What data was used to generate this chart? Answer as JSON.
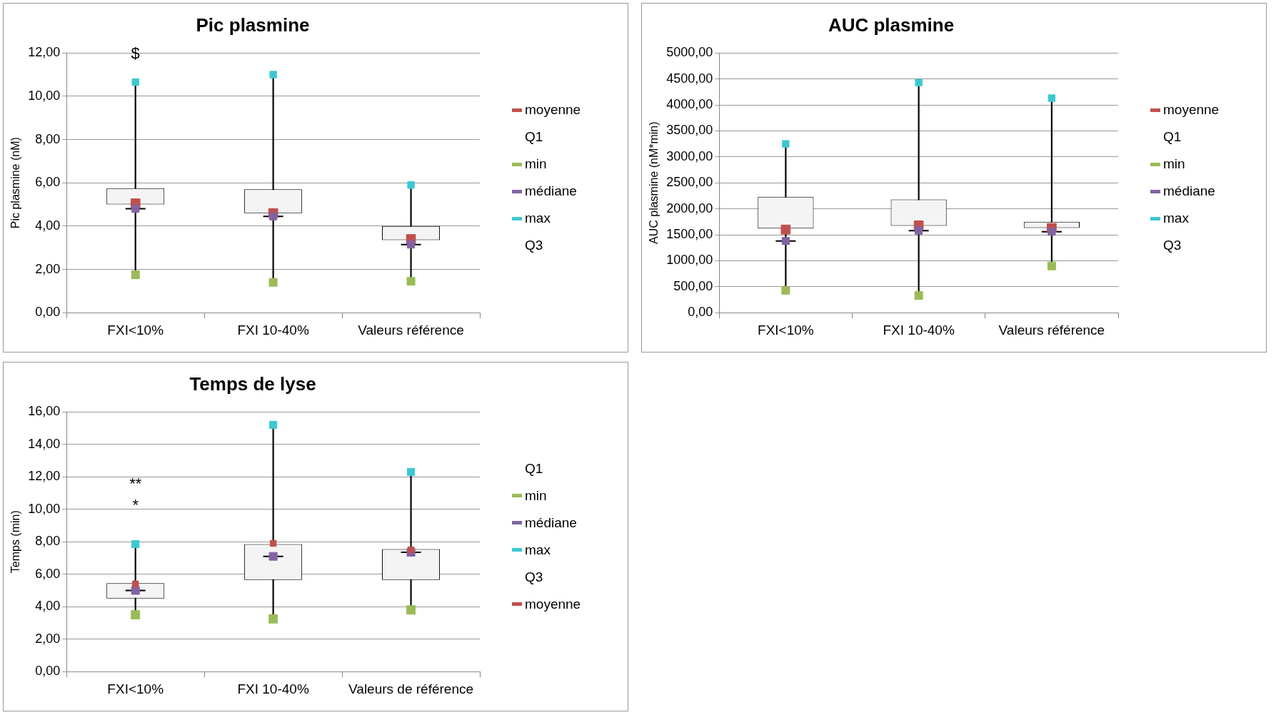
{
  "chart_data": [
    {
      "type": "box",
      "title": "Pic plasmine",
      "ylabel": "Pic plasmine (nM)",
      "categories": [
        "FXI<10%",
        "FXI 10-40%",
        "Valeurs référence"
      ],
      "boxes": [
        {
          "low": 1.75,
          "q1": 5.0,
          "median": 4.8,
          "q3": 5.75,
          "high": 10.65
        },
        {
          "low": 1.4,
          "q1": 4.6,
          "median": 4.45,
          "q3": 5.7,
          "high": 11.0
        },
        {
          "low": 1.45,
          "q1": 3.35,
          "median": 3.15,
          "q3": 4.0,
          "high": 5.9
        }
      ],
      "series": [
        {
          "name": "moyenne",
          "type": "scatter",
          "color": "#c0504d",
          "x": [
            "FXI<10%",
            "FXI 10-40%",
            "Valeurs référence"
          ],
          "values": [
            5.05,
            4.6,
            3.4
          ]
        },
        {
          "name": "Q1",
          "type": "scatter",
          "marker": "none",
          "values": [
            null,
            null,
            null
          ]
        },
        {
          "name": "min",
          "type": "scatter",
          "color": "#9bbb59",
          "x": [
            "FXI<10%",
            "FXI 10-40%",
            "Valeurs référence"
          ],
          "values": [
            1.75,
            1.4,
            1.45
          ]
        },
        {
          "name": "médiane",
          "type": "scatter",
          "color": "#8064a2",
          "x": [
            "FXI<10%",
            "FXI 10-40%",
            "Valeurs référence"
          ],
          "values": [
            4.8,
            4.45,
            3.15
          ]
        },
        {
          "name": "max",
          "type": "scatter",
          "color": "#3cc8d0",
          "x": [
            "FXI<10%",
            "FXI 10-40%",
            "Valeurs référence"
          ],
          "values": [
            10.65,
            11.0,
            5.9
          ]
        },
        {
          "name": "Q3",
          "type": "scatter",
          "marker": "none",
          "values": [
            null,
            null,
            null
          ]
        }
      ],
      "ylim": [
        0,
        12
      ],
      "yticks": [
        {
          "value": 0,
          "label": "0,00"
        },
        {
          "value": 2,
          "label": "2,00"
        },
        {
          "value": 4,
          "label": "4,00"
        },
        {
          "value": 6,
          "label": "6,00"
        },
        {
          "value": 8,
          "label": "8,00"
        },
        {
          "value": 10,
          "label": "10,00"
        },
        {
          "value": 12,
          "label": "12,00"
        }
      ],
      "grid": "y",
      "legend": "right",
      "annotations": [
        "$"
      ]
    },
    {
      "type": "box",
      "title": "AUC plasmine",
      "ylabel": "AUC plasmine (nM*min)",
      "categories": [
        "FXI<10%",
        "FXI 10-40%",
        "Valeurs référence"
      ],
      "boxes": [
        {
          "low": 430,
          "q1": 1620,
          "median": 1380,
          "q3": 2230,
          "high": 3250
        },
        {
          "low": 330,
          "q1": 1670,
          "median": 1580,
          "q3": 2180,
          "high": 4430
        },
        {
          "low": 900,
          "q1": 1630,
          "median": 1560,
          "q3": 1750,
          "high": 4130
        }
      ],
      "series": [
        {
          "name": "moyenne",
          "type": "scatter",
          "color": "#c0504d",
          "x": [
            "FXI<10%",
            "FXI 10-40%",
            "Valeurs référence"
          ],
          "values": [
            1600,
            1680,
            1630
          ]
        },
        {
          "name": "Q1",
          "type": "scatter",
          "marker": "none",
          "values": [
            null,
            null,
            null
          ]
        },
        {
          "name": "min",
          "type": "scatter",
          "color": "#9bbb59",
          "x": [
            "FXI<10%",
            "FXI 10-40%",
            "Valeurs référence"
          ],
          "values": [
            430,
            330,
            900
          ]
        },
        {
          "name": "médiane",
          "type": "scatter",
          "color": "#8064a2",
          "x": [
            "FXI<10%",
            "FXI 10-40%",
            "Valeurs référence"
          ],
          "values": [
            1380,
            1580,
            1560
          ]
        },
        {
          "name": "max",
          "type": "scatter",
          "color": "#3cc8d0",
          "x": [
            "FXI<10%",
            "FXI 10-40%",
            "Valeurs référence"
          ],
          "values": [
            3250,
            4430,
            4130
          ]
        },
        {
          "name": "Q3",
          "type": "scatter",
          "marker": "none",
          "values": [
            null,
            null,
            null
          ]
        }
      ],
      "ylim": [
        0,
        5000
      ],
      "yticks": [
        {
          "value": 0,
          "label": "0,00"
        },
        {
          "value": 500,
          "label": "500,00"
        },
        {
          "value": 1000,
          "label": "1000,00"
        },
        {
          "value": 1500,
          "label": "1500,00"
        },
        {
          "value": 2000,
          "label": "2000,00"
        },
        {
          "value": 2500,
          "label": "2500,00"
        },
        {
          "value": 3000,
          "label": "3000,00"
        },
        {
          "value": 3500,
          "label": "3500,00"
        },
        {
          "value": 4000,
          "label": "4000,00"
        },
        {
          "value": 4500,
          "label": "4500,00"
        },
        {
          "value": 5000,
          "label": "5000,00"
        }
      ],
      "grid": "y",
      "legend": "right"
    },
    {
      "type": "box",
      "title": "Temps de lyse",
      "ylabel": "Temps (min)",
      "categories": [
        "FXI<10%",
        "FXI 10-40%",
        "Valeurs de référence"
      ],
      "boxes": [
        {
          "low": 3.5,
          "q1": 4.5,
          "median": 5.0,
          "q3": 5.45,
          "high": 7.85
        },
        {
          "low": 3.25,
          "q1": 5.65,
          "median": 7.1,
          "q3": 7.85,
          "high": 15.2
        },
        {
          "low": 3.8,
          "q1": 5.65,
          "median": 7.35,
          "q3": 7.55,
          "high": 12.3
        }
      ],
      "series": [
        {
          "name": "Q1",
          "type": "scatter",
          "marker": "none",
          "values": [
            null,
            null,
            null
          ]
        },
        {
          "name": "min",
          "type": "scatter",
          "color": "#9bbb59",
          "x": [
            "FXI<10%",
            "FXI 10-40%",
            "Valeurs de référence"
          ],
          "values": [
            3.5,
            3.25,
            3.8
          ]
        },
        {
          "name": "médiane",
          "type": "scatter",
          "color": "#8064a2",
          "x": [
            "FXI<10%",
            "FXI 10-40%",
            "Valeurs de référence"
          ],
          "values": [
            5.0,
            7.1,
            7.35
          ]
        },
        {
          "name": "max",
          "type": "scatter",
          "color": "#3cc8d0",
          "x": [
            "FXI<10%",
            "FXI 10-40%",
            "Valeurs de référence"
          ],
          "values": [
            7.85,
            15.2,
            12.3
          ]
        },
        {
          "name": "Q3",
          "type": "scatter",
          "marker": "none",
          "values": [
            null,
            null,
            null
          ]
        },
        {
          "name": "moyenne",
          "type": "scatter",
          "color": "#c0504d",
          "x": [
            "FXI<10%",
            "FXI 10-40%",
            "Valeurs de référence"
          ],
          "values": [
            5.4,
            7.9,
            7.5
          ]
        }
      ],
      "ylim": [
        0,
        16
      ],
      "yticks": [
        {
          "value": 0,
          "label": "0,00"
        },
        {
          "value": 2,
          "label": "2,00"
        },
        {
          "value": 4,
          "label": "4,00"
        },
        {
          "value": 6,
          "label": "6,00"
        },
        {
          "value": 8,
          "label": "8,00"
        },
        {
          "value": 10,
          "label": "10,00"
        },
        {
          "value": 12,
          "label": "12,00"
        },
        {
          "value": 14,
          "label": "14,00"
        },
        {
          "value": 16,
          "label": "16,00"
        }
      ],
      "grid": "y",
      "legend": "right",
      "annotations": [
        "**",
        "*"
      ]
    }
  ]
}
